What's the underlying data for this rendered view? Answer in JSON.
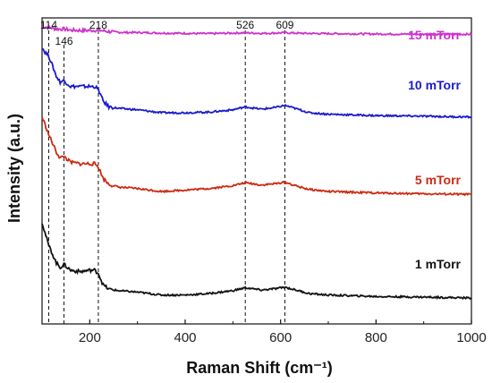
{
  "chart_data": {
    "type": "line",
    "xlabel": "Raman Shift (cm⁻¹)",
    "ylabel": "Intensity (a.u.)",
    "xlim": [
      100,
      1000
    ],
    "xticks": [
      "200",
      "400",
      "600",
      "800",
      "1000"
    ],
    "y_ticks_shown": false,
    "grid": false,
    "peak_markers": [
      {
        "x": 114,
        "label": "114"
      },
      {
        "x": 146,
        "label": "146"
      },
      {
        "x": 218,
        "label": "218"
      },
      {
        "x": 526,
        "label": "526"
      },
      {
        "x": 609,
        "label": "609"
      }
    ],
    "series": [
      {
        "name": "15 mTorr",
        "color": "#cc33cc",
        "x": [
          100,
          114,
          130,
          146,
          160,
          180,
          200,
          218,
          240,
          270,
          300,
          350,
          400,
          450,
          500,
          526,
          560,
          609,
          650,
          700,
          800,
          900,
          1000
        ],
        "y": [
          0.97,
          0.968,
          0.962,
          0.962,
          0.958,
          0.957,
          0.957,
          0.958,
          0.953,
          0.95,
          0.95,
          0.948,
          0.947,
          0.946,
          0.948,
          0.949,
          0.947,
          0.949,
          0.947,
          0.946,
          0.945,
          0.944,
          0.944
        ]
      },
      {
        "name": "10 mTorr",
        "color": "#1a1acc",
        "x": [
          100,
          105,
          114,
          122,
          130,
          138,
          146,
          160,
          180,
          200,
          210,
          218,
          228,
          240,
          260,
          300,
          350,
          400,
          450,
          500,
          526,
          560,
          590,
          609,
          630,
          660,
          700,
          800,
          900,
          1000
        ],
        "y": [
          0.9,
          0.885,
          0.87,
          0.835,
          0.8,
          0.78,
          0.785,
          0.765,
          0.765,
          0.765,
          0.765,
          0.755,
          0.715,
          0.695,
          0.69,
          0.685,
          0.675,
          0.675,
          0.677,
          0.685,
          0.695,
          0.687,
          0.693,
          0.7,
          0.69,
          0.675,
          0.67,
          0.665,
          0.663,
          0.66
        ]
      },
      {
        "name": "5 mTorr",
        "color": "#cc2a12",
        "x": [
          100,
          105,
          114,
          122,
          130,
          138,
          146,
          160,
          180,
          200,
          210,
          218,
          228,
          240,
          260,
          300,
          350,
          400,
          450,
          500,
          526,
          560,
          590,
          609,
          630,
          660,
          700,
          800,
          900,
          1000
        ],
        "y": [
          0.66,
          0.64,
          0.6,
          0.57,
          0.54,
          0.52,
          0.525,
          0.505,
          0.5,
          0.5,
          0.5,
          0.49,
          0.45,
          0.43,
          0.42,
          0.415,
          0.405,
          0.41,
          0.415,
          0.425,
          0.435,
          0.427,
          0.432,
          0.437,
          0.425,
          0.412,
          0.405,
          0.4,
          0.397,
          0.395
        ]
      },
      {
        "name": "1 mTorr",
        "color": "#111111",
        "x": [
          100,
          105,
          114,
          122,
          130,
          138,
          146,
          160,
          180,
          200,
          210,
          218,
          228,
          240,
          260,
          300,
          350,
          400,
          450,
          500,
          526,
          560,
          590,
          609,
          630,
          660,
          700,
          800,
          900,
          1000
        ],
        "y": [
          0.3,
          0.27,
          0.22,
          0.19,
          0.16,
          0.145,
          0.155,
          0.135,
          0.13,
          0.135,
          0.135,
          0.125,
          0.085,
          0.07,
          0.065,
          0.06,
          0.05,
          0.05,
          0.055,
          0.065,
          0.075,
          0.067,
          0.072,
          0.077,
          0.068,
          0.055,
          0.05,
          0.045,
          0.043,
          0.04
        ]
      }
    ]
  }
}
